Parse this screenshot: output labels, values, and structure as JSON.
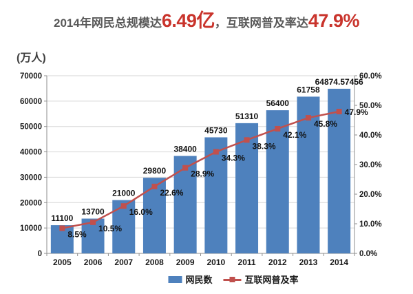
{
  "title": {
    "prefix": "2014年网民总规模达",
    "highlight1": "6.49亿",
    "separator": "，",
    "middle": "互联网普及率达",
    "highlight2": "47.9%"
  },
  "colors": {
    "title_text": "#595959",
    "title_highlight": "#C9342C",
    "bar": "#4E81BD",
    "line": "#C0504D",
    "grid": "#D6D6D6",
    "axis": "#8E8E8E",
    "data_label": "#111111",
    "tick_label": "#1a1a1a",
    "background": "#FFFFFF"
  },
  "chart_data": {
    "type": "bar",
    "title": "2014年网民总规模达6.49亿，互联网普及率达47.9%",
    "unit_label": "(万人)",
    "categories": [
      "2005",
      "2006",
      "2007",
      "2008",
      "2009",
      "2010",
      "2011",
      "2012",
      "2013",
      "2014"
    ],
    "series": [
      {
        "name": "网民数",
        "type": "bar",
        "axis": "left",
        "color": "#4E81BD",
        "values": [
          11100,
          13700,
          21000,
          29800,
          38400,
          45730,
          51310,
          56400,
          61758,
          64874.57456
        ],
        "labels": [
          "11100",
          "13700",
          "21000",
          "29800",
          "38400",
          "45730",
          "51310",
          "56400",
          "61758",
          "64874.57456"
        ]
      },
      {
        "name": "互联网普及率",
        "type": "line",
        "axis": "right",
        "color": "#C0504D",
        "values": [
          8.5,
          10.5,
          16.0,
          22.6,
          28.9,
          34.3,
          38.3,
          42.1,
          45.8,
          47.9
        ],
        "labels": [
          "8.5%",
          "10.5%",
          "16.0%",
          "22.6%",
          "28.9%",
          "34.3%",
          "38.3%",
          "42.1%",
          "45.8%",
          "47.9%"
        ]
      }
    ],
    "left_axis": {
      "min": 0,
      "max": 70000,
      "step": 10000,
      "tick_labels": [
        "0",
        "10000",
        "20000",
        "30000",
        "40000",
        "50000",
        "60000",
        "70000"
      ]
    },
    "right_axis": {
      "min": 0,
      "max": 60,
      "step": 10,
      "tick_labels": [
        "0.0%",
        "10.0%",
        "20.0%",
        "30.0%",
        "40.0%",
        "50.0%",
        "60.0%"
      ]
    },
    "grid": true,
    "legend_position": "bottom"
  }
}
